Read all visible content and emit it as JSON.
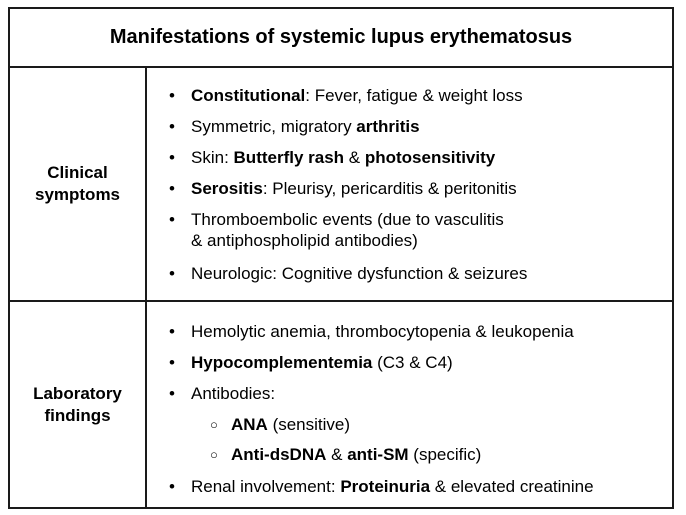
{
  "title": "Manifestations of systemic lupus erythematosus",
  "clinical": {
    "label_line1": "Clinical",
    "label_line2": "symptoms",
    "items": [
      {
        "parts": [
          {
            "t": "Constitutional",
            "b": true
          },
          {
            "t": ": Fever, fatigue & weight loss",
            "b": false
          }
        ]
      },
      {
        "parts": [
          {
            "t": "Symmetric, migratory ",
            "b": false
          },
          {
            "t": "arthritis",
            "b": true
          }
        ]
      },
      {
        "parts": [
          {
            "t": "Skin: ",
            "b": false
          },
          {
            "t": "Butterfly rash",
            "b": true
          },
          {
            "t": " & ",
            "b": false
          },
          {
            "t": "photosensitivity",
            "b": true
          }
        ]
      },
      {
        "parts": [
          {
            "t": "Serositis",
            "b": true
          },
          {
            "t": ": Pleurisy, pericarditis & peritonitis",
            "b": false
          }
        ]
      },
      {
        "line1": "Thromboembolic events (due to vasculitis",
        "line2": "& antiphospholipid antibodies)"
      },
      {
        "parts": [
          {
            "t": "Neurologic: Cognitive dysfunction & seizures",
            "b": false
          }
        ]
      }
    ]
  },
  "lab": {
    "label_line1": "Laboratory",
    "label_line2": "findings",
    "items": [
      {
        "parts": [
          {
            "t": "Hemolytic anemia, thrombocytopenia & leukopenia",
            "b": false
          }
        ]
      },
      {
        "parts": [
          {
            "t": "Hypocomplementemia",
            "b": true
          },
          {
            "t": " (C3 & C4)",
            "b": false
          }
        ]
      },
      {
        "parts": [
          {
            "t": "Antibodies:",
            "b": false
          }
        ]
      },
      {
        "parts": [
          {
            "t": "ANA",
            "b": true
          },
          {
            "t": " (sensitive)",
            "b": false
          }
        ]
      },
      {
        "parts": [
          {
            "t": "Anti-dsDNA",
            "b": true
          },
          {
            "t": " & ",
            "b": false
          },
          {
            "t": "anti-SM",
            "b": true
          },
          {
            "t": " (specific)",
            "b": false
          }
        ]
      },
      {
        "parts": [
          {
            "t": "Renal involvement: ",
            "b": false
          },
          {
            "t": "Proteinuria",
            "b": true
          },
          {
            "t": " & elevated creatinine",
            "b": false
          }
        ]
      }
    ]
  }
}
